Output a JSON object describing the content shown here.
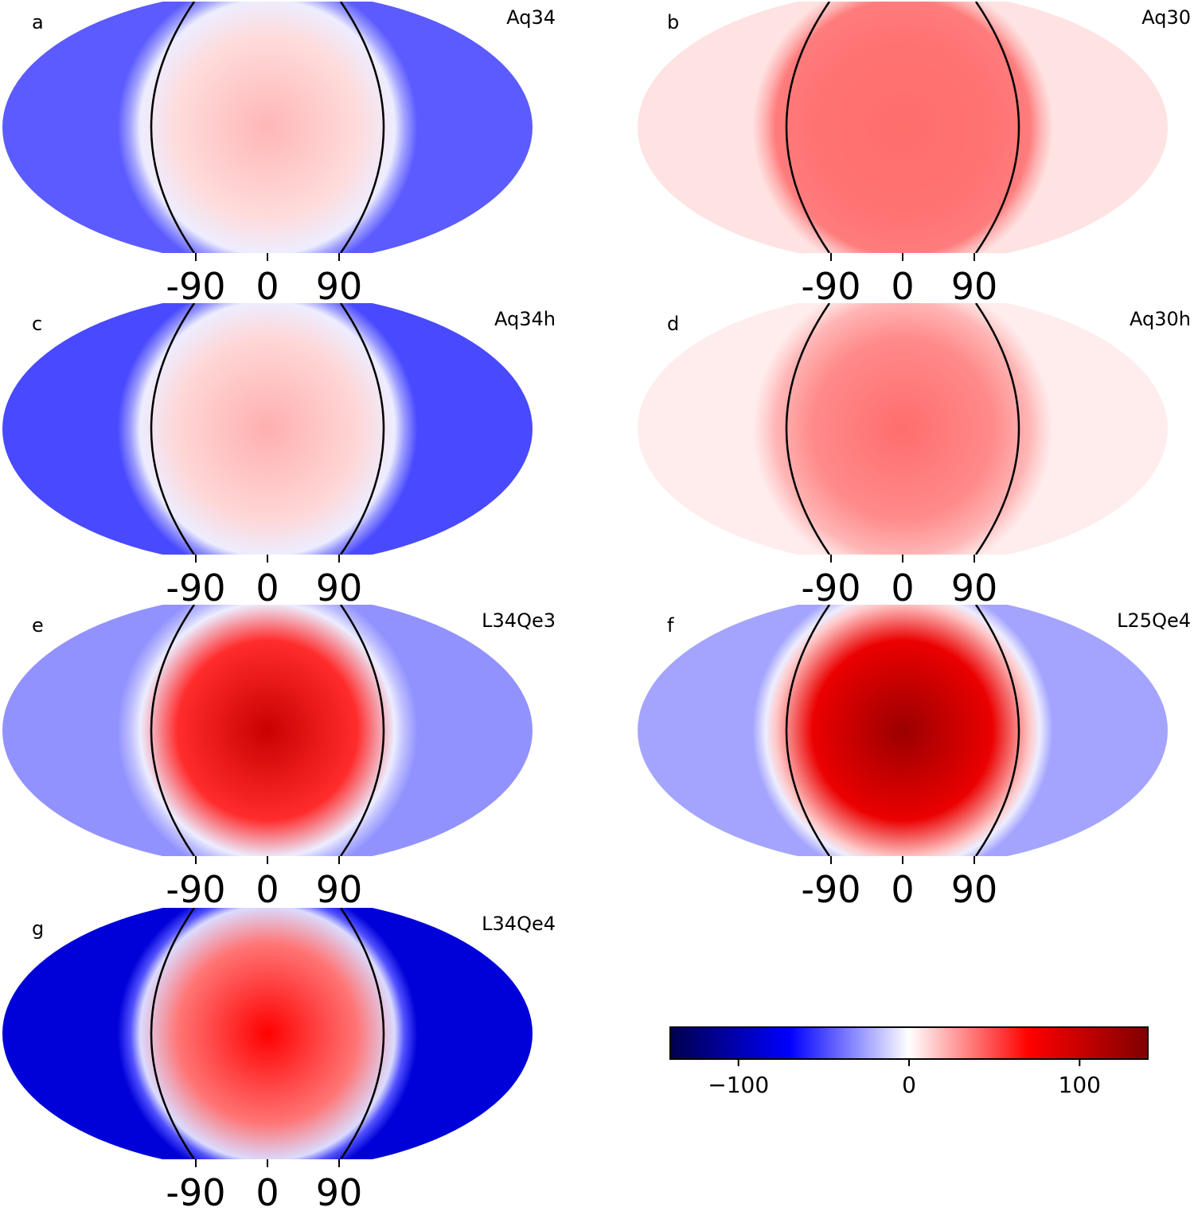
{
  "chart_data": {
    "type": "heatmap",
    "description_units": "color scale values",
    "projection": "elliptical map with longitude ticks",
    "colorbar": {
      "colormap": "seismic",
      "range": [
        -140,
        140
      ],
      "ticks": [
        -100,
        0,
        100
      ],
      "tick_labels": [
        "−100",
        "0",
        "100"
      ]
    },
    "panels": [
      {
        "letter": "a",
        "title": "Aq34",
        "center_value": 20,
        "rim_value": -5,
        "outer_value": -45,
        "xticks": [
          -90,
          0,
          90
        ],
        "xtick_labels": [
          "-90",
          "0",
          "90"
        ]
      },
      {
        "letter": "b",
        "title": "Aq30",
        "center_value": 40,
        "rim_value": 36,
        "outer_value": 8,
        "xticks": [
          -90,
          0,
          90
        ],
        "xtick_labels": [
          "-90",
          "0",
          "90"
        ]
      },
      {
        "letter": "c",
        "title": "Aq34h",
        "center_value": 22,
        "rim_value": -5,
        "outer_value": -50,
        "xticks": [
          -90,
          0,
          90
        ],
        "xtick_labels": [
          "-90",
          "0",
          "90"
        ]
      },
      {
        "letter": "d",
        "title": "Aq30h",
        "center_value": 40,
        "rim_value": 20,
        "outer_value": 5,
        "xticks": [
          -90,
          0,
          90
        ],
        "xtick_labels": [
          "-90",
          "0",
          "90"
        ]
      },
      {
        "letter": "e",
        "title": "L34Qe3",
        "center_value": 100,
        "rim_value": -5,
        "outer_value": -30,
        "xticks": [
          -90,
          0,
          90
        ],
        "xtick_labels": [
          "-90",
          "0",
          "90"
        ]
      },
      {
        "letter": "f",
        "title": "L25Qe4",
        "center_value": 125,
        "rim_value": 15,
        "outer_value": -25,
        "xticks": [
          -90,
          0,
          90
        ],
        "xtick_labels": [
          "-90",
          "0",
          "90"
        ]
      },
      {
        "letter": "g",
        "title": "L34Qe4",
        "center_value": 70,
        "rim_value": -10,
        "outer_value": -85,
        "xticks": [
          -90,
          0,
          90
        ],
        "xtick_labels": [
          "-90",
          "0",
          "90"
        ]
      }
    ],
    "terminator_lines": "solid black curves near longitude ±90"
  }
}
